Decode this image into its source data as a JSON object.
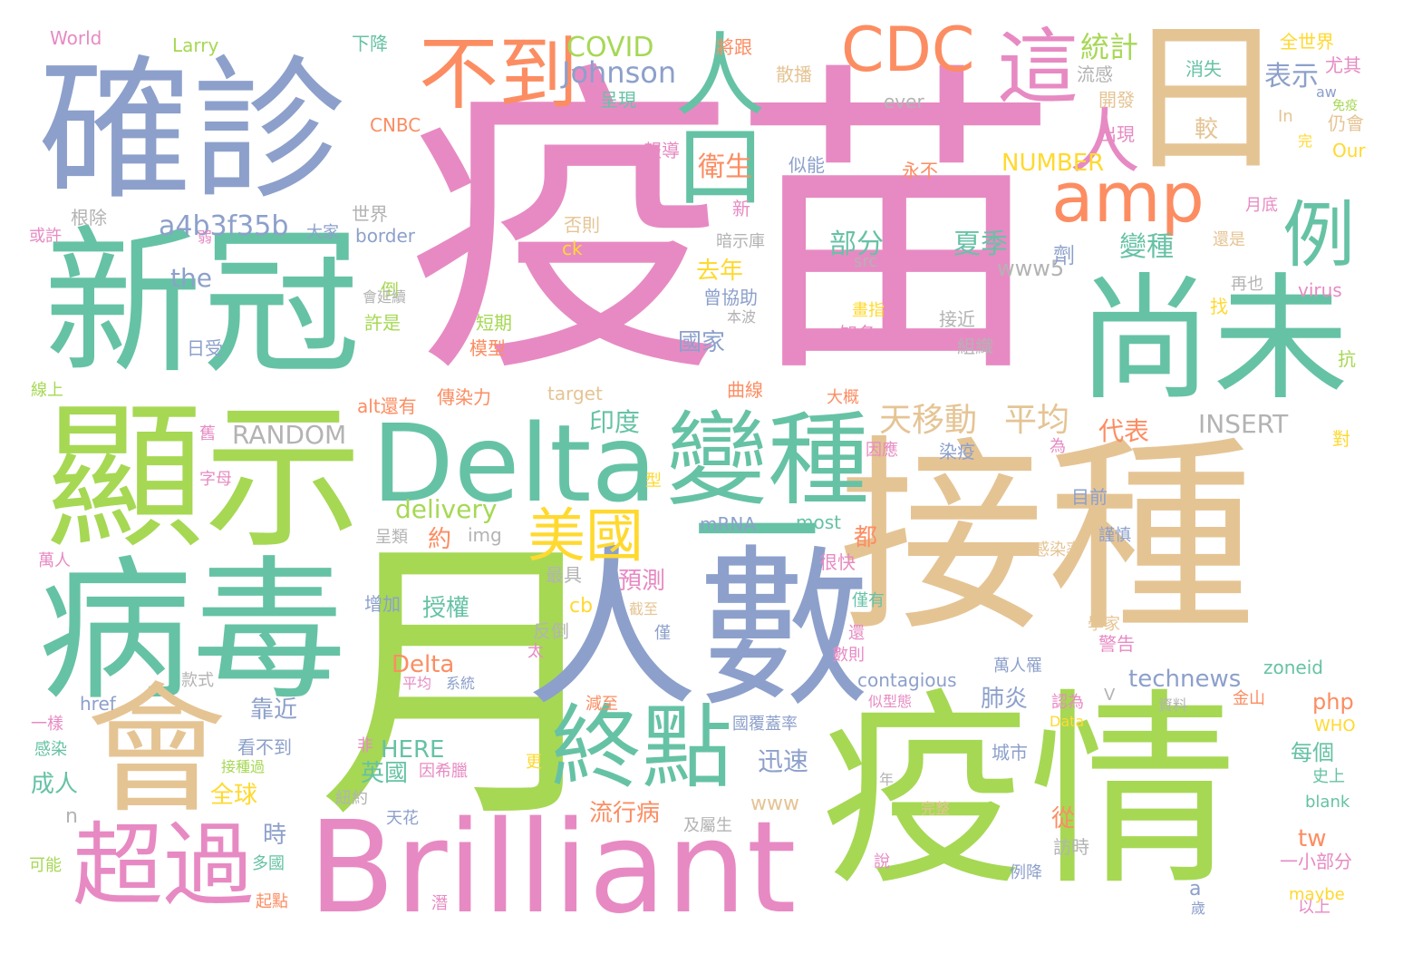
{
  "palette": {
    "pink": "#e78ac3",
    "green": "#a6d854",
    "teal": "#66c2a5",
    "tan": "#e5c494",
    "blue": "#8da0cb",
    "orange": "#fc8d62",
    "yellow": "#ffd92f",
    "gray": "#b3b3b3"
  },
  "words": [
    {
      "text": "疫苗",
      "color": "pink"
    },
    {
      "text": "月",
      "color": "green"
    },
    {
      "text": "接種",
      "color": "tan"
    },
    {
      "text": "疫情",
      "color": "green"
    },
    {
      "text": "人數",
      "color": "blue"
    },
    {
      "text": "Brilliant",
      "color": "pink"
    },
    {
      "text": "確診",
      "color": "blue"
    },
    {
      "text": "新冠",
      "color": "teal"
    },
    {
      "text": "顯示",
      "color": "green"
    },
    {
      "text": "病毒",
      "color": "teal"
    },
    {
      "text": "會",
      "color": "tan"
    },
    {
      "text": "日",
      "color": "tan"
    },
    {
      "text": "尚未",
      "color": "teal"
    },
    {
      "text": "Delta",
      "color": "teal"
    },
    {
      "text": "變種",
      "color": "teal"
    },
    {
      "text": "終點",
      "color": "teal"
    },
    {
      "text": "超過",
      "color": "pink"
    },
    {
      "text": "不到",
      "color": "orange"
    },
    {
      "text": "CDC",
      "color": "orange"
    },
    {
      "text": "amp",
      "color": "orange"
    },
    {
      "text": "這",
      "color": "pink"
    },
    {
      "text": "人口",
      "color": "teal"
    },
    {
      "text": "人",
      "color": "pink"
    },
    {
      "text": "例",
      "color": "teal"
    },
    {
      "text": "美國",
      "color": "yellow"
    },
    {
      "text": "一",
      "color": "teal"
    },
    {
      "text": "Johnson",
      "color": "blue"
    },
    {
      "text": "COVID",
      "color": "green"
    },
    {
      "text": "統計",
      "color": "green"
    },
    {
      "text": "表示",
      "color": "blue"
    },
    {
      "text": "天移動",
      "color": "tan"
    },
    {
      "text": "平均",
      "color": "tan"
    },
    {
      "text": "a4b3f35b",
      "color": "blue"
    },
    {
      "text": "部分",
      "color": "teal"
    },
    {
      "text": "夏季",
      "color": "teal"
    },
    {
      "text": "變種",
      "color": "teal"
    },
    {
      "text": "衛生",
      "color": "orange"
    },
    {
      "text": "NUMBER",
      "color": "yellow"
    },
    {
      "text": "World",
      "color": "pink"
    },
    {
      "text": "Larry",
      "color": "green"
    },
    {
      "text": "下降",
      "color": "teal"
    },
    {
      "text": "將跟",
      "color": "orange"
    },
    {
      "text": "全世界",
      "color": "yellow"
    },
    {
      "text": "尤其",
      "color": "pink"
    },
    {
      "text": "消失",
      "color": "teal"
    },
    {
      "text": "散播",
      "color": "tan"
    },
    {
      "text": "流感",
      "color": "gray"
    },
    {
      "text": "ever",
      "color": "gray"
    },
    {
      "text": "呈現",
      "color": "teal"
    },
    {
      "text": "開發",
      "color": "tan"
    },
    {
      "text": "較",
      "color": "tan"
    },
    {
      "text": "出現",
      "color": "pink"
    },
    {
      "text": "仍會",
      "color": "tan"
    },
    {
      "text": "Our",
      "color": "yellow"
    },
    {
      "text": "In",
      "color": "tan"
    },
    {
      "text": "完",
      "color": "yellow"
    },
    {
      "text": "aw",
      "color": "blue"
    },
    {
      "text": "免疫",
      "color": "green"
    },
    {
      "text": "CNBC",
      "color": "orange"
    },
    {
      "text": "報導",
      "color": "pink"
    },
    {
      "text": "似能",
      "color": "blue"
    },
    {
      "text": "永不",
      "color": "orange"
    },
    {
      "text": "新",
      "color": "pink"
    },
    {
      "text": "月底",
      "color": "pink"
    },
    {
      "text": "根除",
      "color": "gray"
    },
    {
      "text": "世界",
      "color": "gray"
    },
    {
      "text": "大家",
      "color": "blue"
    },
    {
      "text": "border",
      "color": "blue"
    },
    {
      "text": "否則",
      "color": "tan"
    },
    {
      "text": "暗示庫",
      "color": "gray"
    },
    {
      "text": "或許",
      "color": "pink"
    },
    {
      "text": "弱",
      "color": "pink"
    },
    {
      "text": "ck",
      "color": "yellow"
    },
    {
      "text": "src",
      "color": "gray"
    },
    {
      "text": "www5",
      "color": "gray"
    },
    {
      "text": "還是",
      "color": "tan"
    },
    {
      "text": "the",
      "color": "blue"
    },
    {
      "text": "去年",
      "color": "yellow"
    },
    {
      "text": "劑",
      "color": "blue"
    },
    {
      "text": "再也",
      "color": "gray"
    },
    {
      "text": "virus",
      "color": "pink"
    },
    {
      "text": "倒",
      "color": "green"
    },
    {
      "text": "會延續",
      "color": "gray"
    },
    {
      "text": "曾協助",
      "color": "blue"
    },
    {
      "text": "本波",
      "color": "gray"
    },
    {
      "text": "畫指",
      "color": "yellow"
    },
    {
      "text": "接近",
      "color": "gray"
    },
    {
      "text": "找",
      "color": "yellow"
    },
    {
      "text": "許是",
      "color": "green"
    },
    {
      "text": "短期",
      "color": "green"
    },
    {
      "text": "國家",
      "color": "blue"
    },
    {
      "text": "知名",
      "color": "pink"
    },
    {
      "text": "組織",
      "color": "gray"
    },
    {
      "text": "日受",
      "color": "blue"
    },
    {
      "text": "模型",
      "color": "orange"
    },
    {
      "text": "抗",
      "color": "green"
    },
    {
      "text": "target",
      "color": "tan"
    },
    {
      "text": "曲線",
      "color": "orange"
    },
    {
      "text": "線上",
      "color": "green"
    },
    {
      "text": "alt還有",
      "color": "orange"
    },
    {
      "text": "傳染力",
      "color": "orange"
    },
    {
      "text": "大概",
      "color": "orange"
    },
    {
      "text": "印度",
      "color": "teal"
    },
    {
      "text": "代表",
      "color": "orange"
    },
    {
      "text": "INSERT",
      "color": "gray"
    },
    {
      "text": "舊",
      "color": "pink"
    },
    {
      "text": "RANDOM",
      "color": "gray"
    },
    {
      "text": "因應",
      "color": "pink"
    },
    {
      "text": "染疫",
      "color": "blue"
    },
    {
      "text": "為",
      "color": "pink"
    },
    {
      "text": "對",
      "color": "yellow"
    },
    {
      "text": "字母",
      "color": "pink"
    },
    {
      "text": "型",
      "color": "yellow"
    },
    {
      "text": "delivery",
      "color": "green"
    },
    {
      "text": "目前",
      "color": "blue"
    },
    {
      "text": "mRNA",
      "color": "blue"
    },
    {
      "text": "most",
      "color": "teal"
    },
    {
      "text": "都",
      "color": "orange"
    },
    {
      "text": "呈類",
      "color": "gray"
    },
    {
      "text": "約",
      "color": "orange"
    },
    {
      "text": "img",
      "color": "gray"
    },
    {
      "text": "謹慎",
      "color": "blue"
    },
    {
      "text": "萬人",
      "color": "pink"
    },
    {
      "text": "感染率",
      "color": "tan"
    },
    {
      "text": "最具",
      "color": "gray"
    },
    {
      "text": "很快",
      "color": "pink"
    },
    {
      "text": "預測",
      "color": "pink"
    },
    {
      "text": "授權",
      "color": "teal"
    },
    {
      "text": "cb",
      "color": "yellow"
    },
    {
      "text": "截至",
      "color": "tan"
    },
    {
      "text": "僅有",
      "color": "teal"
    },
    {
      "text": "增加",
      "color": "blue"
    },
    {
      "text": "反倒",
      "color": "gray"
    },
    {
      "text": "僅",
      "color": "blue"
    },
    {
      "text": "還",
      "color": "pink"
    },
    {
      "text": "學家",
      "color": "tan"
    },
    {
      "text": "警告",
      "color": "pink"
    },
    {
      "text": "zoneid",
      "color": "teal"
    },
    {
      "text": "太",
      "color": "pink"
    },
    {
      "text": "數則",
      "color": "pink"
    },
    {
      "text": "萬人罹",
      "color": "blue"
    },
    {
      "text": "Delta",
      "color": "orange"
    },
    {
      "text": "平均",
      "color": "pink"
    },
    {
      "text": "系統",
      "color": "blue"
    },
    {
      "text": "contagious",
      "color": "blue"
    },
    {
      "text": "technews",
      "color": "blue"
    },
    {
      "text": "V",
      "color": "gray"
    },
    {
      "text": "款式",
      "color": "gray"
    },
    {
      "text": "href",
      "color": "blue"
    },
    {
      "text": "減至",
      "color": "orange"
    },
    {
      "text": "似型態",
      "color": "pink"
    },
    {
      "text": "認為",
      "color": "pink"
    },
    {
      "text": "資料",
      "color": "gray"
    },
    {
      "text": "金山",
      "color": "orange"
    },
    {
      "text": "php",
      "color": "orange"
    },
    {
      "text": "一樣",
      "color": "pink"
    },
    {
      "text": "靠近",
      "color": "blue"
    },
    {
      "text": "肺炎",
      "color": "blue"
    },
    {
      "text": "Data",
      "color": "yellow"
    },
    {
      "text": "WHO",
      "color": "yellow"
    },
    {
      "text": "感染",
      "color": "teal"
    },
    {
      "text": "看不到",
      "color": "blue"
    },
    {
      "text": "非",
      "color": "pink"
    },
    {
      "text": "HERE",
      "color": "teal"
    },
    {
      "text": "國覆蓋率",
      "color": "blue"
    },
    {
      "text": "城市",
      "color": "blue"
    },
    {
      "text": "每個",
      "color": "teal"
    },
    {
      "text": "接種過",
      "color": "green"
    },
    {
      "text": "英國",
      "color": "teal"
    },
    {
      "text": "因希臘",
      "color": "pink"
    },
    {
      "text": "迅速",
      "color": "blue"
    },
    {
      "text": "更",
      "color": "yellow"
    },
    {
      "text": "史上",
      "color": "teal"
    },
    {
      "text": "成人",
      "color": "teal"
    },
    {
      "text": "全球",
      "color": "yellow"
    },
    {
      "text": "紐約",
      "color": "gray"
    },
    {
      "text": "www",
      "color": "tan"
    },
    {
      "text": "年",
      "color": "gray"
    },
    {
      "text": "blank",
      "color": "teal"
    },
    {
      "text": "n",
      "color": "gray"
    },
    {
      "text": "流行病",
      "color": "orange"
    },
    {
      "text": "天花",
      "color": "blue"
    },
    {
      "text": "及屬生",
      "color": "gray"
    },
    {
      "text": "完整",
      "color": "tan"
    },
    {
      "text": "tw",
      "color": "orange"
    },
    {
      "text": "時",
      "color": "blue"
    },
    {
      "text": "從",
      "color": "orange"
    },
    {
      "text": "訪時",
      "color": "gray"
    },
    {
      "text": "一小部分",
      "color": "pink"
    },
    {
      "text": "可能",
      "color": "green"
    },
    {
      "text": "多國",
      "color": "teal"
    },
    {
      "text": "說",
      "color": "pink"
    },
    {
      "text": "例降",
      "color": "blue"
    },
    {
      "text": "a",
      "color": "blue"
    },
    {
      "text": "起點",
      "color": "orange"
    },
    {
      "text": "潛",
      "color": "pink"
    },
    {
      "text": "歲",
      "color": "blue"
    },
    {
      "text": "以上",
      "color": "pink"
    },
    {
      "text": "maybe",
      "color": "yellow"
    }
  ]
}
